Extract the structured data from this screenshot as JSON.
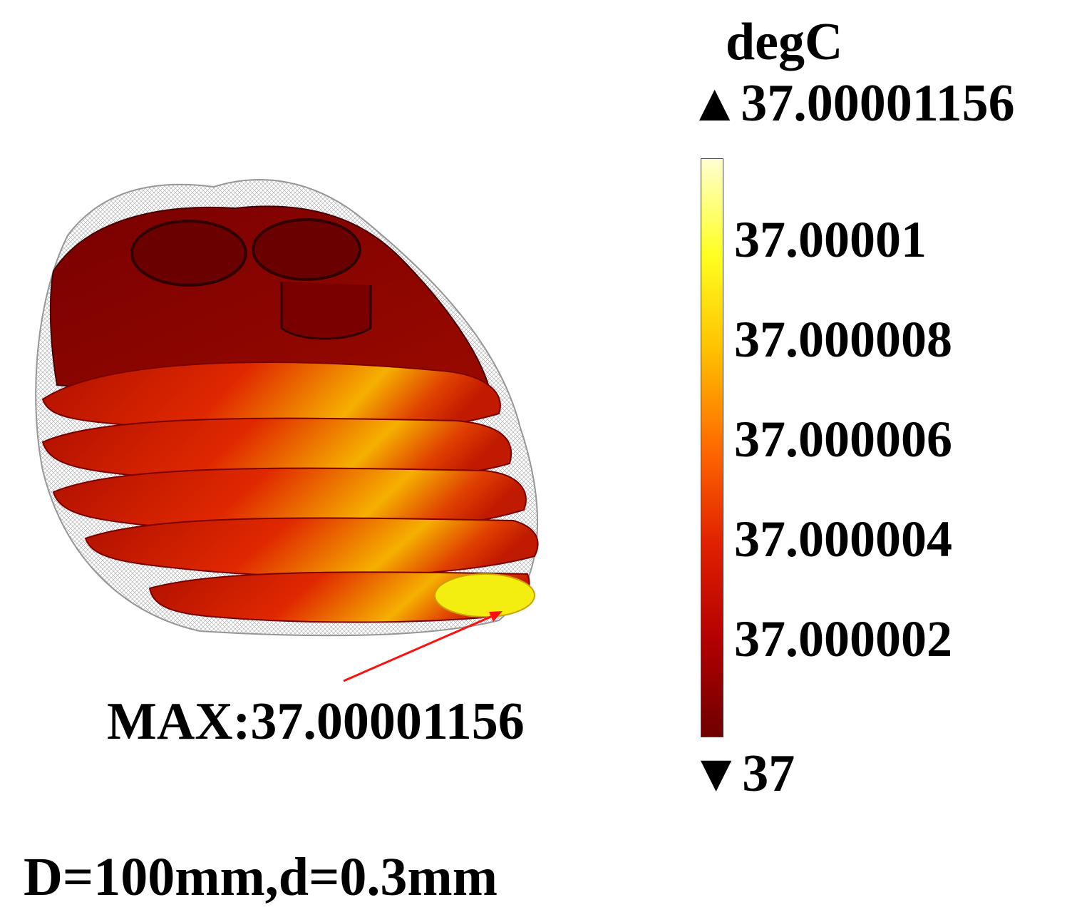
{
  "legend": {
    "unit": "degC",
    "max_label": "▲37.00001156",
    "min_label": "▼37",
    "ticks": [
      "37.00001",
      "37.000008",
      "37.000006",
      "37.000004",
      "37.000002"
    ],
    "colors": [
      "#6e0000",
      "#b30000",
      "#e02000",
      "#ff6a00",
      "#ffc000",
      "#ffff20",
      "#ffffd0"
    ]
  },
  "annotation": "MAX:37.00001156",
  "caption": "D=100mm,d=0.3mm"
}
